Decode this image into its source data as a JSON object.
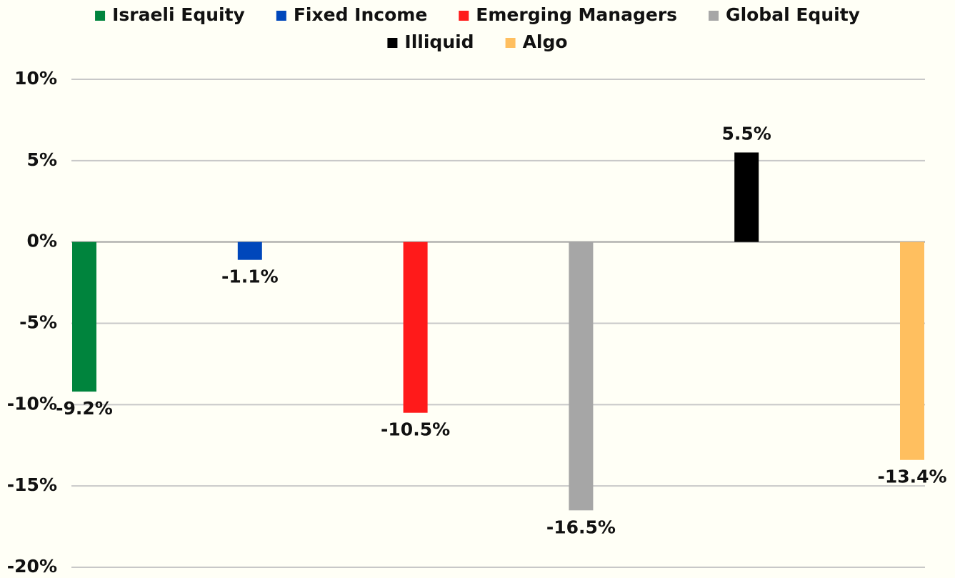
{
  "chart_data": {
    "type": "bar",
    "categories": [
      null
    ],
    "series": [
      {
        "name": "Israeli Equity",
        "color": "#00843d",
        "values": [
          -9.2
        ],
        "value_labels": [
          "-9.2%"
        ]
      },
      {
        "name": "Fixed Income",
        "color": "#0047bb",
        "values": [
          -1.1
        ],
        "value_labels": [
          "-1.1%"
        ]
      },
      {
        "name": "Emerging Managers",
        "color": "#ff1a1a",
        "values": [
          -10.5
        ],
        "value_labels": [
          "-10.5%"
        ]
      },
      {
        "name": "Global Equity",
        "color": "#a6a6a6",
        "values": [
          -16.5
        ],
        "value_labels": [
          "-16.5%"
        ]
      },
      {
        "name": "Illiquid",
        "color": "#000000",
        "values": [
          5.5
        ],
        "value_labels": [
          "5.5%"
        ]
      },
      {
        "name": "Algo",
        "color": "#ffbf5f",
        "values": [
          -13.4
        ],
        "value_labels": [
          "-13.4%"
        ]
      }
    ],
    "ylim": [
      -20,
      10
    ],
    "yticks": [
      {
        "value": -20,
        "label": "-20%"
      },
      {
        "value": -15,
        "label": "-15%"
      },
      {
        "value": -10,
        "label": "-10%"
      },
      {
        "value": -5,
        "label": "-5%"
      },
      {
        "value": 0,
        "label": "0%"
      },
      {
        "value": 5,
        "label": "5%"
      },
      {
        "value": 10,
        "label": "10%"
      }
    ],
    "grid": true,
    "legend": "top"
  }
}
